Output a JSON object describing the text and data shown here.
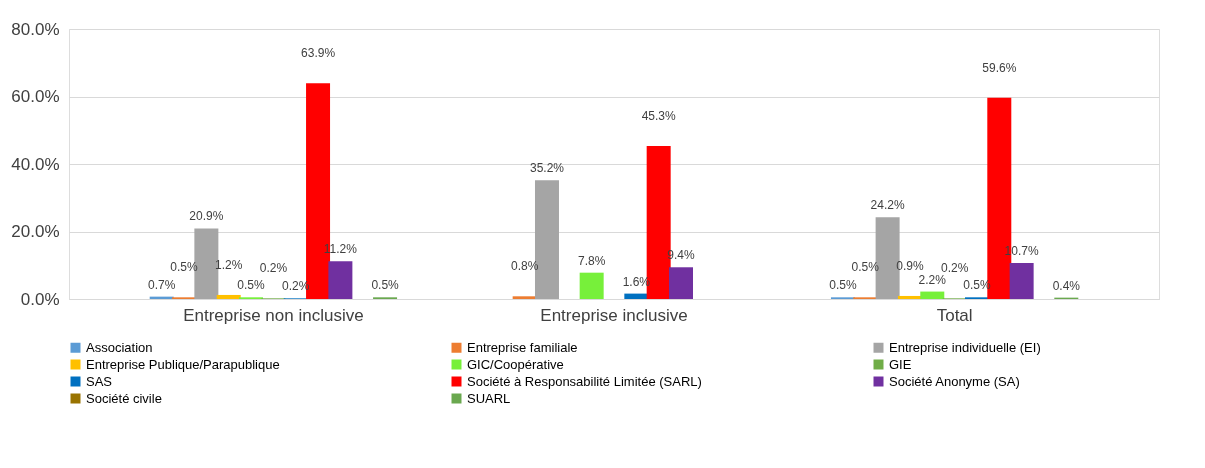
{
  "chart_data": {
    "type": "bar",
    "categories": [
      "Entreprise non inclusive",
      "Entreprise inclusive",
      "Total"
    ],
    "ylim": [
      0,
      80
    ],
    "yticks": [
      {
        "value": 0,
        "label": "0.0%"
      },
      {
        "value": 20,
        "label": "20.0%"
      },
      {
        "value": 40,
        "label": "40.0%"
      },
      {
        "value": 60,
        "label": "60.0%"
      },
      {
        "value": 80,
        "label": "80.0%"
      }
    ],
    "grid": "y",
    "legend": "bottom",
    "series": [
      {
        "name": "Association",
        "color": "#5b9bd5",
        "values": [
          0.7,
          null,
          0.5
        ],
        "value_labels": [
          "0.7%",
          null,
          "0.5%"
        ]
      },
      {
        "name": "Entreprise familiale",
        "color": "#ed7d31",
        "values": [
          0.5,
          0.8,
          0.5
        ],
        "value_labels": [
          "0.5%",
          "0.8%",
          "0.5%"
        ]
      },
      {
        "name": "Entreprise individuelle (EI)",
        "color": "#a5a5a5",
        "values": [
          20.9,
          35.2,
          24.2
        ],
        "value_labels": [
          "20.9%",
          "35.2%",
          "24.2%"
        ]
      },
      {
        "name": "Entreprise Publique/Parapublique",
        "color": "#ffc000",
        "values": [
          1.2,
          null,
          0.9
        ],
        "value_labels": [
          "1.2%",
          null,
          "0.9%"
        ]
      },
      {
        "name": "GIC/Coopérative",
        "color": "#77f03a",
        "values": [
          0.5,
          7.8,
          2.2
        ],
        "value_labels": [
          "0.5%",
          "7.8%",
          "2.2%"
        ]
      },
      {
        "name": "GIE",
        "color": "#70ad47",
        "values": [
          0.2,
          null,
          0.2
        ],
        "value_labels": [
          "0.2%",
          null,
          "0.2%"
        ]
      },
      {
        "name": "SAS",
        "color": "#0070c0",
        "values": [
          0.2,
          1.6,
          0.5
        ],
        "value_labels": [
          "0.2%",
          "1.6%",
          "0.5%"
        ]
      },
      {
        "name": "Société à Responsabilité Limitée (SARL)",
        "color": "#ff0000",
        "values": [
          63.9,
          45.3,
          59.6
        ],
        "value_labels": [
          "63.9%",
          "45.3%",
          "59.6%"
        ]
      },
      {
        "name": "Société Anonyme (SA)",
        "color": "#7030a0",
        "values": [
          11.2,
          9.4,
          10.7
        ],
        "value_labels": [
          "11.2%",
          "9.4%",
          "10.7%"
        ]
      },
      {
        "name": "Société civile",
        "color": "#997300",
        "values": [
          null,
          null,
          null
        ],
        "value_labels": [
          null,
          null,
          null
        ]
      },
      {
        "name": "SUARL",
        "color": "#6aa84f",
        "values": [
          0.5,
          null,
          0.4
        ],
        "value_labels": [
          "0.5%",
          null,
          "0.4%"
        ]
      }
    ]
  }
}
